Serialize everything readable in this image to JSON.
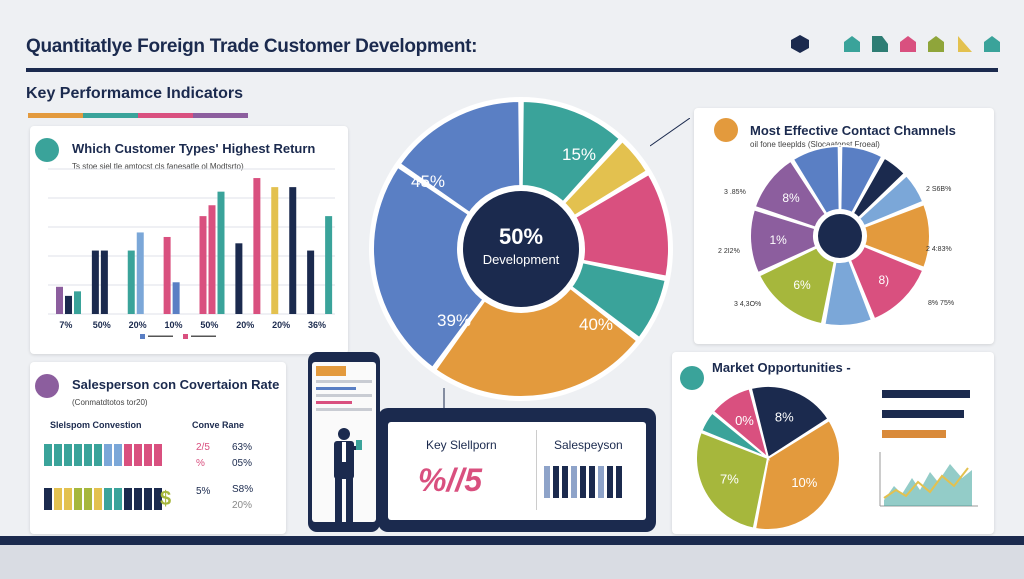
{
  "header": {
    "title": "Quantitatlye Foreign Trade Customer Development:",
    "section": "Key Performamce Indicators"
  },
  "colors": {
    "navy": "#1b2a4e",
    "blue": "#5a7fc4",
    "teal": "#3aa39a",
    "pink": "#d9507f",
    "orange": "#e39a3d",
    "yellow": "#e3c14f",
    "olive": "#a6b73c",
    "purple": "#8c5e9e",
    "lightblue": "#7ba7d8"
  },
  "cards": {
    "customer_types": {
      "title": "Which Customer Types' Highest Return",
      "subtitle": "Ts stoe siel tle amtocst cls fanesatle ol Modtsrto)"
    },
    "salesperson": {
      "title": "Salesperson con Covertaion Rate",
      "subtitle": "(Conmatdtotos tor20)",
      "col1": "Slelspom Convestion",
      "col2": "Conve Rane",
      "r1a": "2/5",
      "r1b": "63%",
      "r2a": "%",
      "r2b": "05%",
      "r3a": "5%",
      "r3b": "S8%",
      "r4b": "20%",
      "dollar": "$"
    },
    "key_sales": {
      "label1": "Key Slellporn",
      "label2": "Salespeyson",
      "value": "%//5"
    },
    "contact": {
      "title": "Most Effective Contact Chamnels",
      "subtitle": "oil fone tleeplds (Slocaatonst Froeal)",
      "left": [
        "3 .85%",
        "2 2I2%",
        "3 4,3O%"
      ],
      "right": [
        "2 S6B%",
        "2 4:83%",
        "8% 75%"
      ],
      "slices": [
        "8%",
        "1%",
        "6%",
        "8)"
      ]
    },
    "market": {
      "title": "Market Opportunities -",
      "slices": [
        "8%",
        "0%",
        "10%",
        "7%"
      ]
    }
  },
  "chart_data": [
    {
      "type": "bar",
      "title": "Which Customer Types' Highest Return",
      "categories": [
        "7%",
        "50%",
        "20%",
        "10%",
        "50%",
        "20%",
        "20%",
        "36%"
      ],
      "series": [
        {
          "values": [
            30,
            70,
            70,
            85,
            108,
            78,
            140,
            70
          ]
        },
        {
          "values": [
            20,
            70,
            90,
            35,
            120,
            0,
            0,
            0
          ]
        },
        {
          "values": [
            25,
            0,
            0,
            0,
            135,
            150,
            140,
            108
          ]
        }
      ]
    },
    {
      "type": "pie",
      "title": "Development",
      "center_label": "50%",
      "values": [
        13,
        5,
        13,
        8,
        27,
        27,
        17
      ],
      "labels": [
        "",
        "",
        "15%",
        "",
        "40%",
        "39%",
        "45%"
      ]
    },
    {
      "type": "pie",
      "title": "Most Effective Contact Chamnels",
      "values": [
        8,
        5,
        6,
        12,
        13,
        9,
        15,
        12,
        11,
        9
      ],
      "labels": [
        "",
        "",
        "",
        "",
        "8)",
        "",
        "6%",
        "1%",
        "8%",
        ""
      ]
    },
    {
      "type": "pie",
      "title": "Market Opportunities -",
      "values": [
        20,
        37,
        28,
        5,
        10
      ],
      "labels": [
        "8%",
        "10%",
        "7%",
        "",
        "0%"
      ]
    }
  ]
}
